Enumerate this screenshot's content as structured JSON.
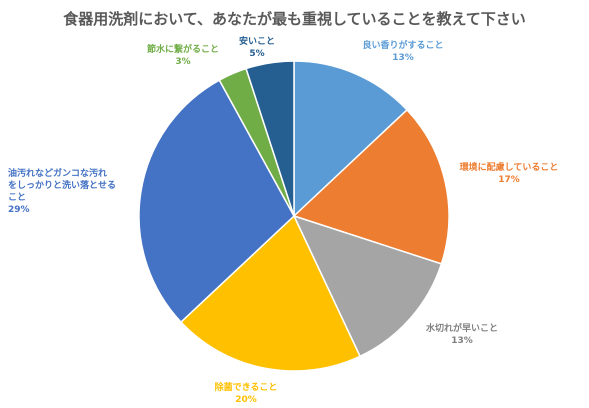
{
  "chart_data": {
    "type": "pie",
    "title": "食器用洗剤において、あなたが最も重視していることを教えて下さい",
    "slices": [
      {
        "label": "良い香りがすること",
        "value": 13,
        "pct": "13%",
        "color": "#5B9BD5"
      },
      {
        "label": "環境に配慮していること",
        "value": 17,
        "pct": "17%",
        "color": "#ED7D31"
      },
      {
        "label": "水切れが早いこと",
        "value": 13,
        "pct": "13%",
        "color": "#A5A5A5"
      },
      {
        "label": "除菌できること",
        "value": 20,
        "pct": "20%",
        "color": "#FFC000"
      },
      {
        "label_lines": [
          "油汚れなどガンコな汚れ",
          "をしっかりと洗い落とせる",
          "こと"
        ],
        "value": 29,
        "pct": "29%",
        "color": "#4472C4"
      },
      {
        "label": "節水に繋がること",
        "value": 3,
        "pct": "3%",
        "color": "#70AD47"
      },
      {
        "label": "安いこと",
        "value": 5,
        "pct": "5%",
        "color": "#255E91"
      }
    ]
  }
}
